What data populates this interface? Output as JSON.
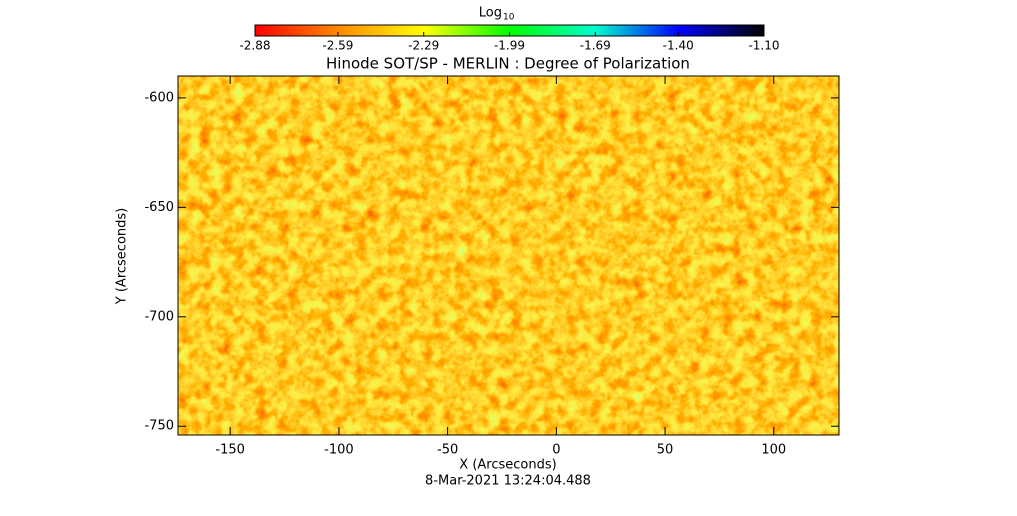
{
  "chart_data": {
    "type": "heatmap",
    "title": "Hinode SOT/SP - MERLIN : Degree of Polarization",
    "x_label": "X (Arcseconds)",
    "y_label": "Y (Arcseconds)",
    "footer": "8-Mar-2021 13:24:04.488",
    "colorbar_label": "Log",
    "colorbar_label_sub": "10",
    "xlim": [
      -174,
      130
    ],
    "xticks": [
      -150,
      -100,
      -50,
      0,
      50,
      100
    ],
    "ylim": [
      -754,
      -590
    ],
    "yticks": [
      -750,
      -700,
      -650,
      -600
    ],
    "clim": [
      -2.88,
      -1.1
    ],
    "cticks": [
      -2.88,
      -2.59,
      -2.29,
      -1.99,
      -1.69,
      {
        "value": -1.4,
        "label": "-1.40"
      },
      {
        "value": -1.1,
        "label": "-1.10"
      }
    ],
    "colormap": [
      "#ff0000",
      "#ff8c00",
      "#ffff00",
      "#00ff00",
      "#00ffcc",
      "#0000ff",
      "#000000"
    ]
  }
}
